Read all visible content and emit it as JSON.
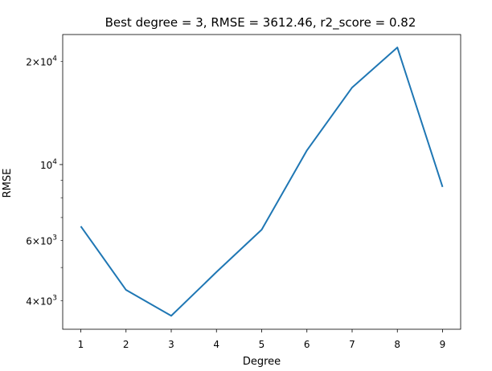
{
  "chart_data": {
    "type": "line",
    "title": "Best degree = 3, RMSE = 3612.46, r2_score = 0.82",
    "xlabel": "Degree",
    "ylabel": "RMSE",
    "yscale": "log",
    "grid": false,
    "legend": "none",
    "xlim": [
      0.6,
      9.4
    ],
    "ylim": [
      3300,
      24000
    ],
    "xticks": [
      1,
      2,
      3,
      4,
      5,
      6,
      7,
      8,
      9
    ],
    "xtick_labels": [
      "1",
      "2",
      "3",
      "4",
      "5",
      "6",
      "7",
      "8",
      "9"
    ],
    "yticks_major": [
      {
        "value": 10000,
        "base": "10",
        "exp": "4"
      }
    ],
    "yticks_minor": [
      {
        "value": 4000,
        "mant": "4",
        "base": "10",
        "exp": "3",
        "labeled": true
      },
      {
        "value": 5000,
        "labeled": false
      },
      {
        "value": 6000,
        "mant": "6",
        "base": "10",
        "exp": "3",
        "labeled": true
      },
      {
        "value": 7000,
        "labeled": false
      },
      {
        "value": 8000,
        "labeled": false
      },
      {
        "value": 9000,
        "labeled": false
      },
      {
        "value": 20000,
        "mant": "2",
        "base": "10",
        "exp": "4",
        "labeled": true
      }
    ],
    "series": [
      {
        "color": "#1f77b4",
        "x": [
          1,
          2,
          3,
          4,
          5,
          6,
          7,
          8,
          9
        ],
        "y": [
          6600,
          4300,
          3612.46,
          4850,
          6450,
          11000,
          16800,
          22000,
          8600
        ]
      }
    ]
  }
}
